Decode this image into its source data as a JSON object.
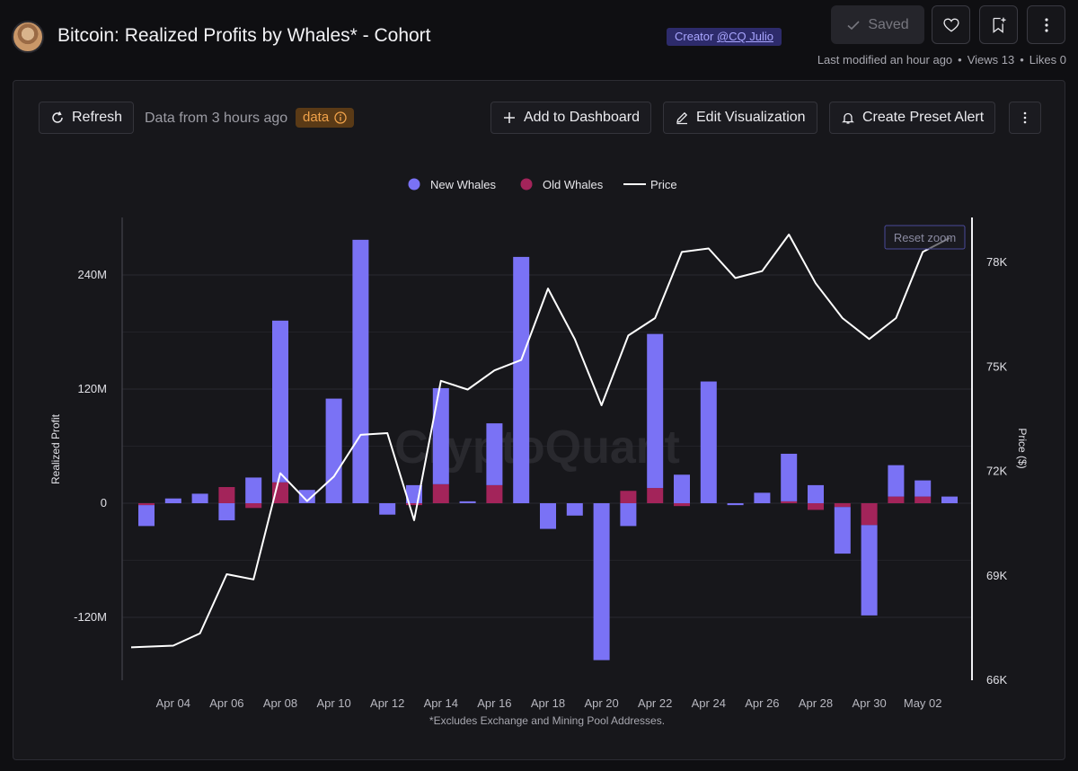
{
  "header": {
    "title": "Bitcoin: Realized Profits by Whales* - Cohort",
    "creator_prefix": "Creator ",
    "creator_name": "@CQ Julio",
    "saved_label": "Saved",
    "last_modified": "Last modified an hour ago",
    "views": "Views 13",
    "likes": "Likes 0"
  },
  "toolbar": {
    "refresh_label": "Refresh",
    "data_from": "Data from 3 hours ago",
    "data_tag": "data",
    "add_dashboard_label": "Add to Dashboard",
    "edit_viz_label": "Edit Visualization",
    "preset_alert_label": "Create Preset Alert"
  },
  "chart_data": {
    "type": "bar",
    "title": "",
    "xlabel": "",
    "ylabel": "Realized Profit",
    "y2label": "Price ($)",
    "footnote": "*Excludes Exchange and Mining Pool Addresses.",
    "watermark": "CryptoQuant",
    "reset_zoom_label": "Reset zoom",
    "legend_position": "top-center",
    "x_ticks": [
      "Apr 04",
      "Apr 06",
      "Apr 08",
      "Apr 10",
      "Apr 12",
      "Apr 14",
      "Apr 16",
      "Apr 18",
      "Apr 20",
      "Apr 22",
      "Apr 24",
      "Apr 26",
      "Apr 28",
      "Apr 30",
      "May 02"
    ],
    "y_ticks": [
      "240M",
      "120M",
      "0",
      "-120M"
    ],
    "y2_ticks": [
      "78K",
      "75K",
      "72K",
      "69K",
      "66K"
    ],
    "ylim": [
      -185,
      300
    ],
    "y2lim": [
      66000,
      79300
    ],
    "dates": [
      "Apr 03",
      "Apr 04",
      "Apr 05",
      "Apr 06",
      "Apr 07",
      "Apr 08",
      "Apr 09",
      "Apr 10",
      "Apr 11",
      "Apr 12",
      "Apr 13",
      "Apr 14",
      "Apr 15",
      "Apr 16",
      "Apr 17",
      "Apr 18",
      "Apr 19",
      "Apr 20",
      "Apr 21",
      "Apr 22",
      "Apr 23",
      "Apr 24",
      "Apr 25",
      "Apr 26",
      "Apr 27",
      "Apr 28",
      "Apr 29",
      "Apr 30",
      "May 01",
      "May 02",
      "May 03"
    ],
    "series": [
      {
        "name": "New Whales",
        "color": "#7a72f5",
        "values": [
          -22,
          5,
          10,
          -18,
          27,
          170,
          14,
          110,
          277,
          -12,
          19,
          101,
          2,
          65,
          259,
          -27,
          -13,
          -165,
          -24,
          162,
          30,
          128,
          -2,
          11,
          50,
          19,
          -49,
          -95,
          33,
          17,
          7
        ]
      },
      {
        "name": "Old Whales",
        "color": "#a3245a",
        "values": [
          -2,
          0,
          0,
          17,
          -5,
          22,
          0,
          0,
          0,
          0,
          -2,
          20,
          0,
          19,
          0,
          0,
          0,
          0,
          13,
          16,
          -3,
          0,
          0,
          0,
          2,
          -7,
          -4,
          -23,
          7,
          7,
          0
        ]
      },
      {
        "name": "Price",
        "color": "#ffffff",
        "values": [
          66950,
          67000,
          67350,
          69050,
          68900,
          71950,
          71150,
          71850,
          73050,
          73100,
          70600,
          74600,
          74350,
          74900,
          75200,
          77250,
          75800,
          73900,
          75900,
          76400,
          78300,
          78400,
          77550,
          77750,
          78800,
          77400,
          76400,
          75800,
          76400,
          78300,
          78700
        ]
      }
    ]
  }
}
